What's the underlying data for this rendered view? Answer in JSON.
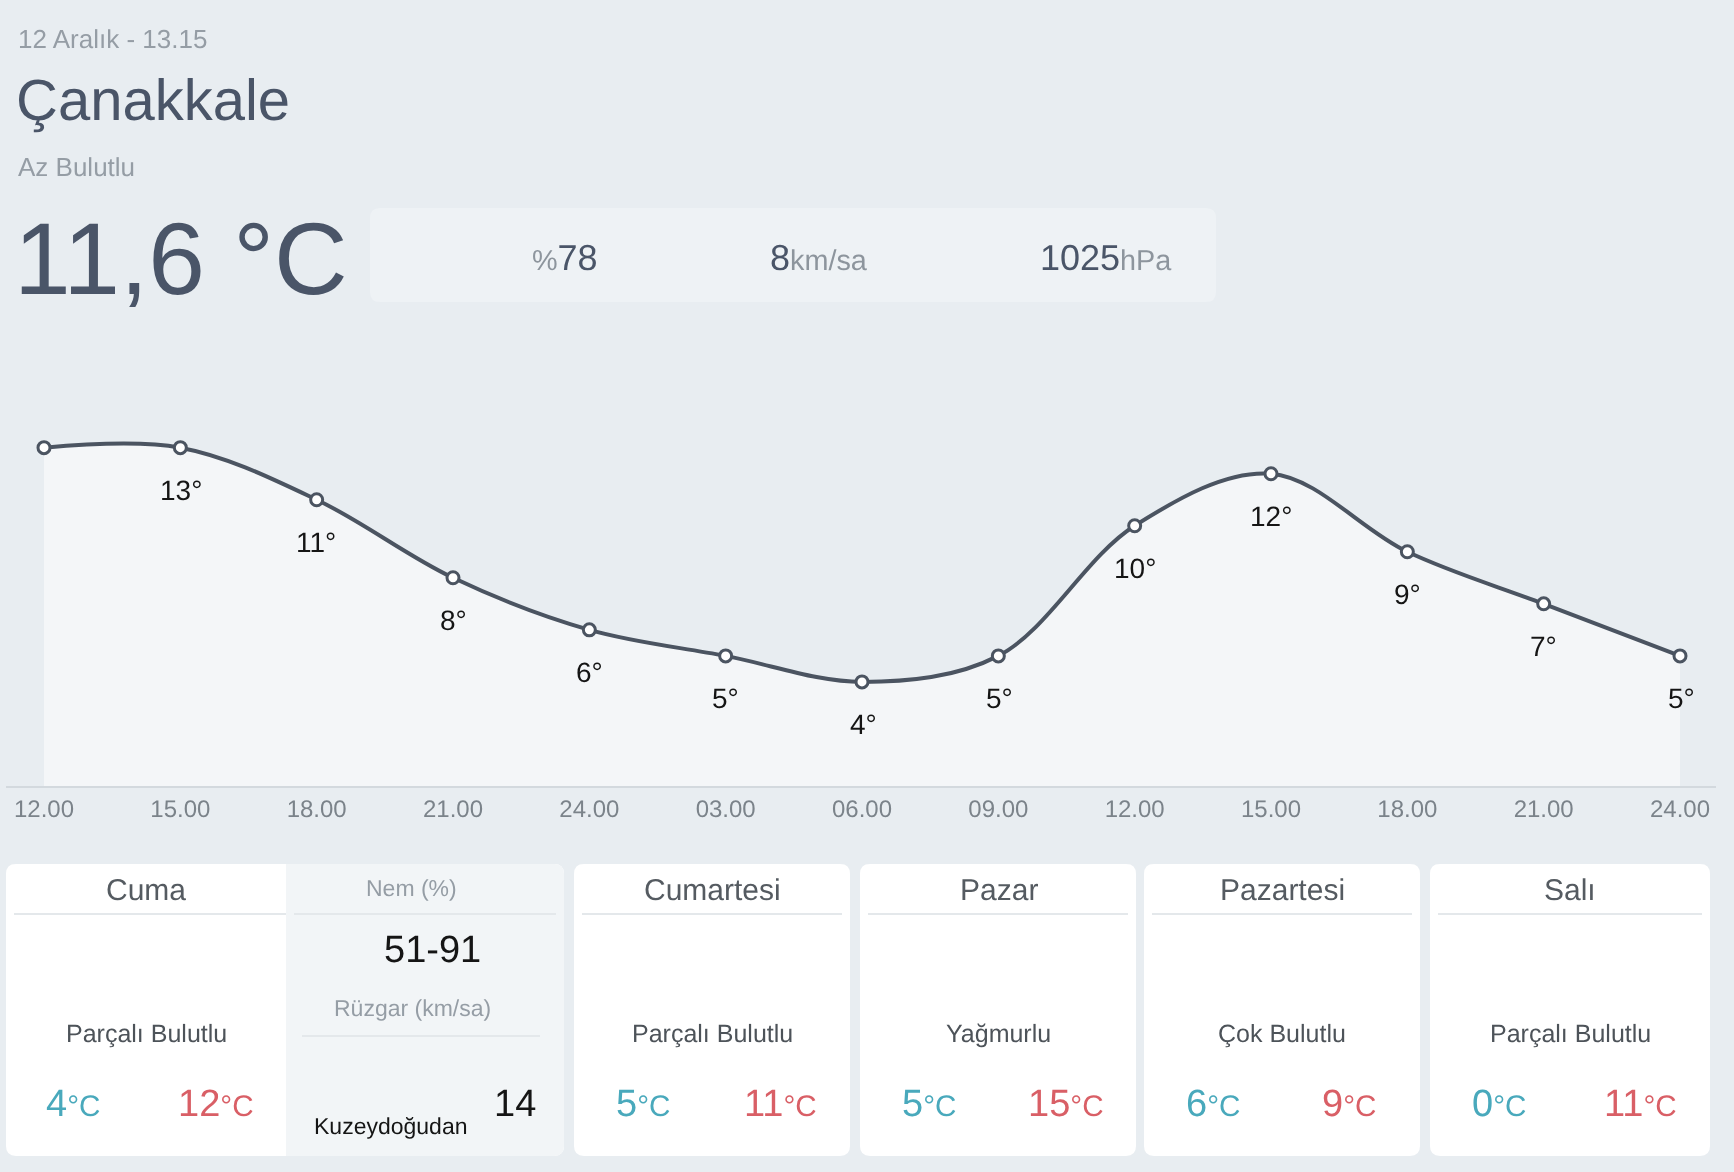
{
  "chart_data": [
    {
      "type": "other",
      "title": "Çanakkale",
      "annotations": [
        "12 Aralık - 13.15",
        "Az Bulutlu",
        "11,6 °C",
        "%78",
        "8km/sa",
        "1025hPa"
      ]
    },
    {
      "type": "area",
      "categories": [
        "12.00",
        "15.00",
        "18.00",
        "21.00",
        "24.00",
        "03.00",
        "06.00",
        "09.00",
        "12.00",
        "15.00",
        "18.00",
        "21.00",
        "24.00"
      ],
      "values": [
        13,
        13,
        11,
        8,
        6,
        5,
        4,
        5,
        10,
        12,
        9,
        7,
        5
      ],
      "value_labels": [
        null,
        "13°",
        "11°",
        "8°",
        "6°",
        "5°",
        "4°",
        "5°",
        "10°",
        "12°",
        "9°",
        "7°",
        "5°"
      ],
      "color": "#4b5461",
      "marker": "circle"
    },
    {
      "type": "other",
      "annotations": [
        "Cuma",
        "Parçalı Bulutlu",
        "4°C",
        "12°C",
        "Nem (%)",
        "51-91",
        "Rüzgar (km/sa)",
        "Kuzeydoğudan",
        "14",
        "Cumartesi",
        "Parçalı Bulutlu",
        "5°C",
        "11°C",
        "Pazar",
        "Yağmurlu",
        "5°C",
        "15°C",
        "Pazartesi",
        "Çok Bulutlu",
        "6°C",
        "9°C",
        "Salı",
        "Parçalı Bulutlu",
        "0°C",
        "11°C"
      ]
    }
  ]
}
